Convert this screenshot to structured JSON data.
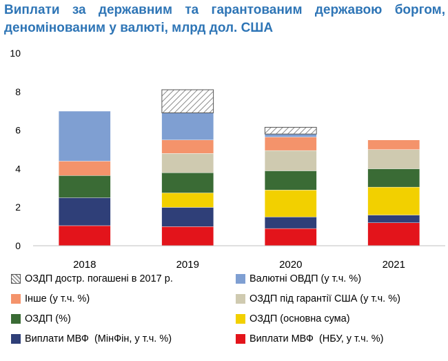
{
  "chart_data": {
    "type": "bar",
    "stacked": true,
    "title": "Виплати за державним та гарантованим державою боргом, деномінованим у валюті, млрд дол. США",
    "categories": [
      "2018",
      "2019",
      "2020",
      "2021"
    ],
    "ylim": [
      0,
      10
    ],
    "yticks": [
      "0",
      "2",
      "4",
      "6",
      "8",
      "10"
    ],
    "grid": false,
    "legend_position": "bottom",
    "series": [
      {
        "name": "Виплати МВФ  (НБУ, у т.ч. %)",
        "color": "#e3141b",
        "values": [
          1.05,
          1.0,
          0.9,
          1.2
        ]
      },
      {
        "name": "Виплати МВФ  (МінФін, у т.ч. %)",
        "color": "#2f3f78",
        "values": [
          1.45,
          1.0,
          0.6,
          0.4
        ]
      },
      {
        "name": "ОЗДП (основна сума)",
        "color": "#f2d000",
        "values": [
          0.0,
          0.75,
          1.4,
          1.45
        ]
      },
      {
        "name": "ОЗДП (%)",
        "color": "#3a6b35",
        "values": [
          1.15,
          1.05,
          1.0,
          0.95
        ]
      },
      {
        "name": "ОЗДП під гарантії США (у т.ч. %)",
        "color": "#cfcab0",
        "values": [
          0.0,
          1.0,
          1.05,
          1.0
        ]
      },
      {
        "name": "Інше (у т.ч. %)",
        "color": "#f4936b",
        "values": [
          0.75,
          0.7,
          0.7,
          0.5
        ]
      },
      {
        "name": "Валютні ОВДП (у т.ч. %)",
        "color": "#7f9fd2",
        "values": [
          2.6,
          1.4,
          0.15,
          0.0
        ]
      },
      {
        "name": "ОЗДП достр. погашені в 2017 р.",
        "color": "#ffffff",
        "pattern": "hatch",
        "values": [
          0.0,
          1.2,
          0.35,
          0.0
        ]
      }
    ]
  }
}
